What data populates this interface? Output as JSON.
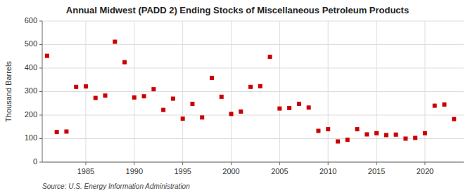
{
  "chart_data": {
    "type": "scatter",
    "title": "Annual Midwest (PADD 2) Ending Stocks of Miscellaneous Petroleum Products",
    "ylabel": "Thousand Barrels",
    "annotations": [
      "Source: U.S. Energy Information Administration"
    ],
    "x": [
      1981,
      1982,
      1983,
      1984,
      1985,
      1986,
      1987,
      1988,
      1989,
      1990,
      1991,
      1992,
      1993,
      1994,
      1995,
      1996,
      1997,
      1998,
      1999,
      2000,
      2001,
      2002,
      2003,
      2004,
      2005,
      2006,
      2007,
      2008,
      2009,
      2010,
      2011,
      2012,
      2013,
      2014,
      2015,
      2016,
      2017,
      2018,
      2019,
      2020,
      2021,
      2022,
      2023
    ],
    "values": [
      452,
      128,
      130,
      320,
      322,
      273,
      283,
      512,
      425,
      275,
      280,
      310,
      222,
      270,
      185,
      248,
      190,
      358,
      278,
      205,
      215,
      320,
      323,
      448,
      228,
      230,
      248,
      232,
      133,
      140,
      88,
      95,
      140,
      118,
      123,
      115,
      117,
      100,
      103,
      123,
      240,
      245,
      183
    ],
    "color": "#cc0000",
    "marker": "square",
    "xlim": [
      1980.5,
      2024
    ],
    "xticks": [
      1985,
      1990,
      1995,
      2000,
      2005,
      2010,
      2015,
      2020
    ],
    "ylim": [
      0,
      600
    ],
    "yticks": [
      0,
      100,
      200,
      300,
      400,
      500,
      600
    ],
    "grid": true
  }
}
